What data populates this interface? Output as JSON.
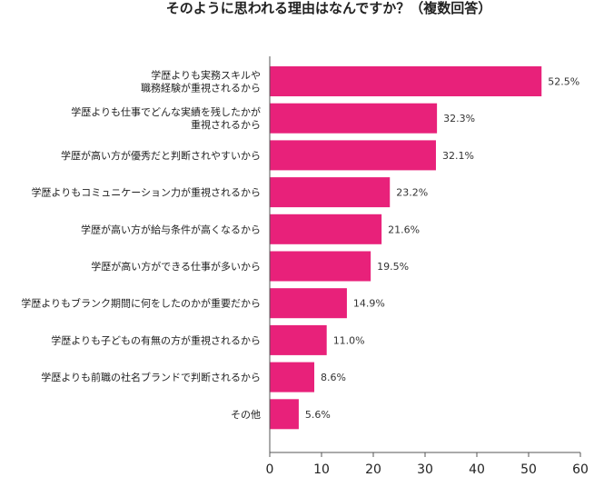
{
  "chart_data": {
    "type": "bar",
    "orientation": "horizontal",
    "title": "そのように思われる理由はなんですか？（複数回答）",
    "categories": [
      [
        "学歴よりも実務スキルや",
        "職務経験が重視されるから"
      ],
      [
        "学歴よりも仕事でどんな実績を残したかが",
        "重視されるから"
      ],
      [
        "学歴が高い方が優秀だと判断されやすいから"
      ],
      [
        "学歴よりもコミュニケーション力が重視されるから"
      ],
      [
        "学歴が高い方が給与条件が高くなるから"
      ],
      [
        "学歴が高い方ができる仕事が多いから"
      ],
      [
        "学歴よりもブランク期間に何をしたのかが重要だから"
      ],
      [
        "学歴よりも子どもの有無の方が重視されるから"
      ],
      [
        "学歴よりも前職の社名ブランドで判断されるから"
      ],
      [
        "その他"
      ]
    ],
    "values": [
      52.5,
      32.3,
      32.1,
      23.2,
      21.6,
      19.5,
      14.9,
      11.0,
      8.6,
      5.6
    ],
    "value_labels": [
      "52.5%",
      "32.3%",
      "32.1%",
      "23.2%",
      "21.6%",
      "19.5%",
      "14.9%",
      "11.0%",
      "8.6%",
      "5.6%"
    ],
    "xlim": [
      0,
      60
    ],
    "xticks": [
      "0",
      "10",
      "20",
      "30",
      "40",
      "50",
      "60"
    ],
    "grid": false,
    "bar_color": "#e8217a",
    "axis_color": "#555555"
  }
}
